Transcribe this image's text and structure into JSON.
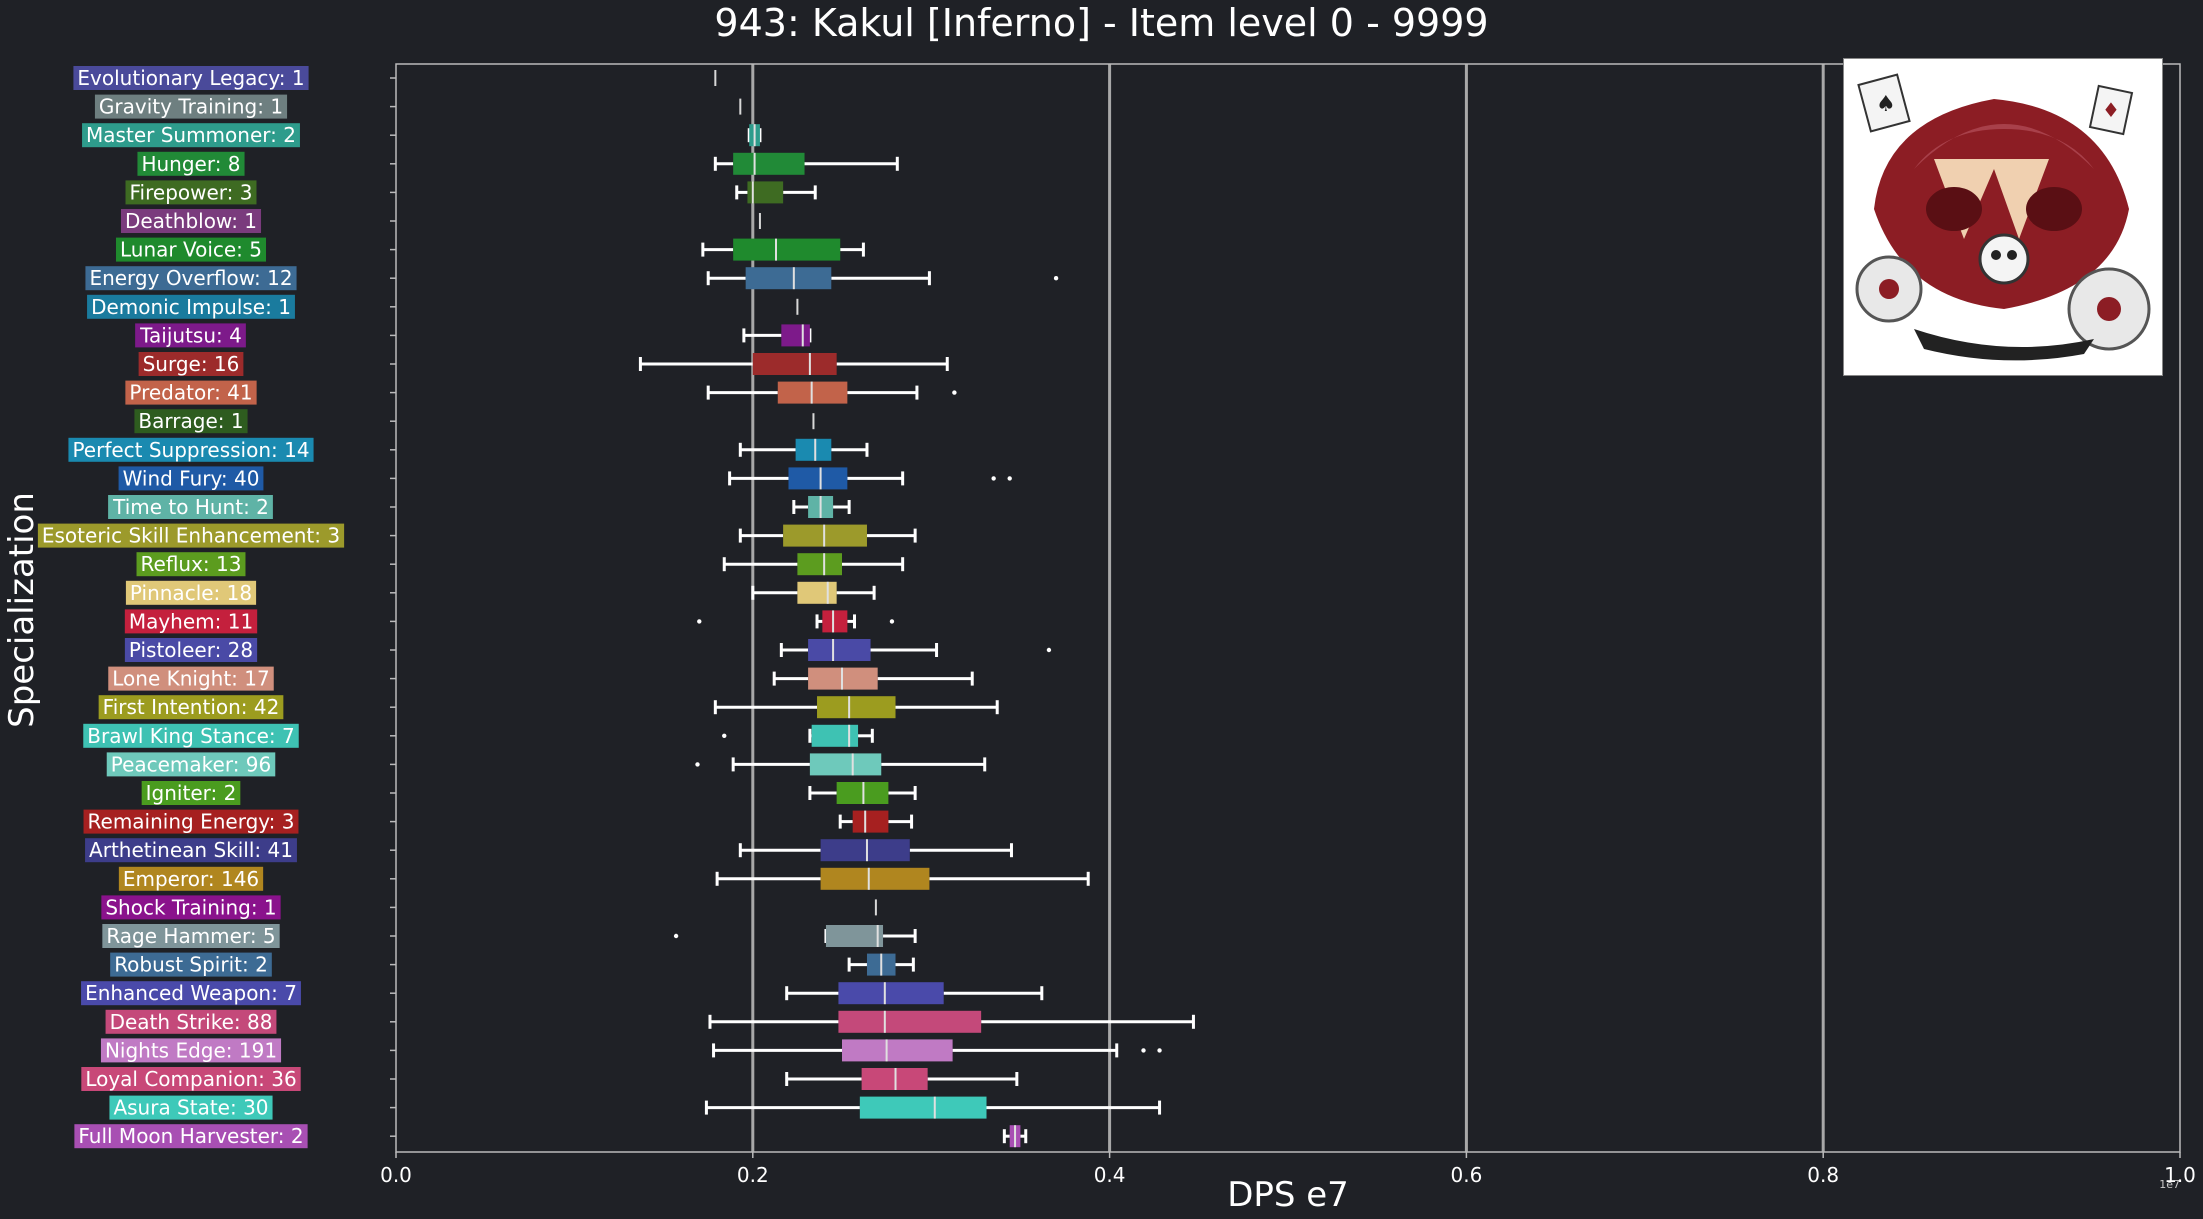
{
  "title": "943: Kakul [Inferno] - Item level 0 - 9999",
  "portrait_icon": "boss-portrait-kakul",
  "chart_data": {
    "type": "box",
    "orientation": "horizontal",
    "title": "943: Kakul [Inferno] - Item level 0 - 9999",
    "xlabel": "DPS e7",
    "ylabel": "Specialization",
    "x_exponent_label": "1e7",
    "xlim": [
      0.0,
      1.0
    ],
    "xticks": [
      "0.0",
      "0.2",
      "0.4",
      "0.6",
      "0.8",
      "1.0"
    ],
    "grid": "vertical",
    "categories": [
      {
        "label": "Evolutionary Legacy: 1",
        "color": "#4a4a9a",
        "wl": 0.179,
        "q1": 0.179,
        "med": 0.179,
        "q3": 0.179,
        "wh": 0.179,
        "outliers": []
      },
      {
        "label": "Gravity Training: 1",
        "color": "#6e7f80",
        "wl": 0.193,
        "q1": 0.193,
        "med": 0.193,
        "q3": 0.193,
        "wh": 0.193,
        "outliers": []
      },
      {
        "label": "Master Summoner: 2",
        "color": "#2e9c8c",
        "wl": 0.198,
        "q1": 0.198,
        "med": 0.201,
        "q3": 0.204,
        "wh": 0.204,
        "outliers": []
      },
      {
        "label": "Hunger: 8",
        "color": "#218a37",
        "wl": 0.179,
        "q1": 0.189,
        "med": 0.201,
        "q3": 0.229,
        "wh": 0.281,
        "outliers": []
      },
      {
        "label": "Firepower: 3",
        "color": "#3e6b22",
        "wl": 0.191,
        "q1": 0.197,
        "med": 0.2,
        "q3": 0.217,
        "wh": 0.235,
        "outliers": []
      },
      {
        "label": "Deathblow: 1",
        "color": "#7a3b7d",
        "wl": 0.204,
        "q1": 0.204,
        "med": 0.204,
        "q3": 0.204,
        "wh": 0.204,
        "outliers": []
      },
      {
        "label": "Lunar Voice: 5",
        "color": "#1f8a2d",
        "wl": 0.172,
        "q1": 0.189,
        "med": 0.213,
        "q3": 0.249,
        "wh": 0.262,
        "outliers": []
      },
      {
        "label": "Energy Overflow: 12",
        "color": "#3d6b94",
        "wl": 0.175,
        "q1": 0.196,
        "med": 0.223,
        "q3": 0.244,
        "wh": 0.299,
        "outliers": [
          0.37
        ]
      },
      {
        "label": "Demonic Impulse: 1",
        "color": "#1a7b9e",
        "wl": 0.225,
        "q1": 0.225,
        "med": 0.225,
        "q3": 0.225,
        "wh": 0.225,
        "outliers": []
      },
      {
        "label": "Taijutsu: 4",
        "color": "#7d1a8a",
        "wl": 0.195,
        "q1": 0.216,
        "med": 0.228,
        "q3": 0.232,
        "wh": 0.232,
        "outliers": []
      },
      {
        "label": "Surge: 16",
        "color": "#9c2b2b",
        "wl": 0.137,
        "q1": 0.2,
        "med": 0.232,
        "q3": 0.247,
        "wh": 0.309,
        "outliers": []
      },
      {
        "label": "Predator: 41",
        "color": "#c2634a",
        "wl": 0.175,
        "q1": 0.214,
        "med": 0.233,
        "q3": 0.253,
        "wh": 0.292,
        "outliers": [
          0.313
        ]
      },
      {
        "label": "Barrage: 1",
        "color": "#2e5c1f",
        "wl": 0.234,
        "q1": 0.234,
        "med": 0.234,
        "q3": 0.234,
        "wh": 0.234,
        "outliers": []
      },
      {
        "label": "Perfect Suppression: 14",
        "color": "#1a8ab0",
        "wl": 0.193,
        "q1": 0.224,
        "med": 0.235,
        "q3": 0.244,
        "wh": 0.264,
        "outliers": []
      },
      {
        "label": "Wind Fury: 40",
        "color": "#1f5aa6",
        "wl": 0.187,
        "q1": 0.22,
        "med": 0.238,
        "q3": 0.253,
        "wh": 0.284,
        "outliers": [
          0.335,
          0.344
        ]
      },
      {
        "label": "Time to Hunt: 2",
        "color": "#5fb3a6",
        "wl": 0.223,
        "q1": 0.231,
        "med": 0.238,
        "q3": 0.245,
        "wh": 0.254,
        "outliers": []
      },
      {
        "label": "Esoteric Skill Enhancement: 3",
        "color": "#9c9a2b",
        "wl": 0.193,
        "q1": 0.217,
        "med": 0.24,
        "q3": 0.264,
        "wh": 0.291,
        "outliers": []
      },
      {
        "label": "Reflux: 13",
        "color": "#5c9c1f",
        "wl": 0.184,
        "q1": 0.225,
        "med": 0.24,
        "q3": 0.25,
        "wh": 0.284,
        "outliers": []
      },
      {
        "label": "Pinnacle: 18",
        "color": "#e0c878",
        "wl": 0.2,
        "q1": 0.225,
        "med": 0.242,
        "q3": 0.247,
        "wh": 0.268,
        "outliers": []
      },
      {
        "label": "Mayhem: 11",
        "color": "#c4203d",
        "wl": 0.236,
        "q1": 0.239,
        "med": 0.245,
        "q3": 0.253,
        "wh": 0.257,
        "outliers": [
          0.17,
          0.278
        ]
      },
      {
        "label": "Pistoleer: 28",
        "color": "#4a4aa6",
        "wl": 0.216,
        "q1": 0.231,
        "med": 0.245,
        "q3": 0.266,
        "wh": 0.303,
        "outliers": [
          0.366
        ]
      },
      {
        "label": "Lone Knight: 17",
        "color": "#d08f7d",
        "wl": 0.212,
        "q1": 0.231,
        "med": 0.25,
        "q3": 0.27,
        "wh": 0.323,
        "outliers": []
      },
      {
        "label": "First Intention: 42",
        "color": "#9c9c1f",
        "wl": 0.179,
        "q1": 0.236,
        "med": 0.254,
        "q3": 0.28,
        "wh": 0.337,
        "outliers": []
      },
      {
        "label": "Brawl King Stance: 7",
        "color": "#3ec2b3",
        "wl": 0.232,
        "q1": 0.233,
        "med": 0.254,
        "q3": 0.259,
        "wh": 0.267,
        "outliers": [
          0.184
        ]
      },
      {
        "label": "Peacemaker: 96",
        "color": "#6ec9bb",
        "wl": 0.189,
        "q1": 0.232,
        "med": 0.256,
        "q3": 0.272,
        "wh": 0.33,
        "outliers": [
          0.169
        ]
      },
      {
        "label": "Igniter: 2",
        "color": "#4a9c1f",
        "wl": 0.232,
        "q1": 0.247,
        "med": 0.262,
        "q3": 0.276,
        "wh": 0.291,
        "outliers": []
      },
      {
        "label": "Remaining Energy: 3",
        "color": "#a62020",
        "wl": 0.249,
        "q1": 0.256,
        "med": 0.263,
        "q3": 0.276,
        "wh": 0.289,
        "outliers": []
      },
      {
        "label": "Arthetinean Skill: 41",
        "color": "#3d3d8a",
        "wl": 0.193,
        "q1": 0.238,
        "med": 0.264,
        "q3": 0.288,
        "wh": 0.345,
        "outliers": []
      },
      {
        "label": "Emperor: 146",
        "color": "#b0861f",
        "wl": 0.18,
        "q1": 0.238,
        "med": 0.265,
        "q3": 0.299,
        "wh": 0.388,
        "outliers": []
      },
      {
        "label": "Shock Training: 1",
        "color": "#8a128c",
        "wl": 0.269,
        "q1": 0.269,
        "med": 0.269,
        "q3": 0.269,
        "wh": 0.269,
        "outliers": []
      },
      {
        "label": "Rage Hammer: 5",
        "color": "#7f959a",
        "wl": 0.241,
        "q1": 0.241,
        "med": 0.27,
        "q3": 0.273,
        "wh": 0.291,
        "outliers": [
          0.157
        ]
      },
      {
        "label": "Robust Spirit: 2",
        "color": "#3d6b94",
        "wl": 0.254,
        "q1": 0.264,
        "med": 0.272,
        "q3": 0.28,
        "wh": 0.29,
        "outliers": []
      },
      {
        "label": "Enhanced Weapon: 7",
        "color": "#4a4aaa",
        "wl": 0.219,
        "q1": 0.248,
        "med": 0.274,
        "q3": 0.307,
        "wh": 0.362,
        "outliers": []
      },
      {
        "label": "Death Strike: 88",
        "color": "#c4497a",
        "wl": 0.176,
        "q1": 0.248,
        "med": 0.274,
        "q3": 0.328,
        "wh": 0.447,
        "outliers": []
      },
      {
        "label": "Nights Edge: 191",
        "color": "#c07ac4",
        "wl": 0.178,
        "q1": 0.25,
        "med": 0.275,
        "q3": 0.312,
        "wh": 0.404,
        "outliers": [
          0.419,
          0.428
        ]
      },
      {
        "label": "Loyal Companion: 36",
        "color": "#c84878",
        "wl": 0.219,
        "q1": 0.261,
        "med": 0.28,
        "q3": 0.298,
        "wh": 0.348,
        "outliers": []
      },
      {
        "label": "Asura State: 30",
        "color": "#3ec9b9",
        "wl": 0.174,
        "q1": 0.26,
        "med": 0.302,
        "q3": 0.331,
        "wh": 0.428,
        "outliers": []
      },
      {
        "label": "Full Moon Harvester: 2",
        "color": "#a84fb3",
        "wl": 0.341,
        "q1": 0.344,
        "med": 0.347,
        "q3": 0.35,
        "wh": 0.353,
        "outliers": []
      }
    ]
  }
}
